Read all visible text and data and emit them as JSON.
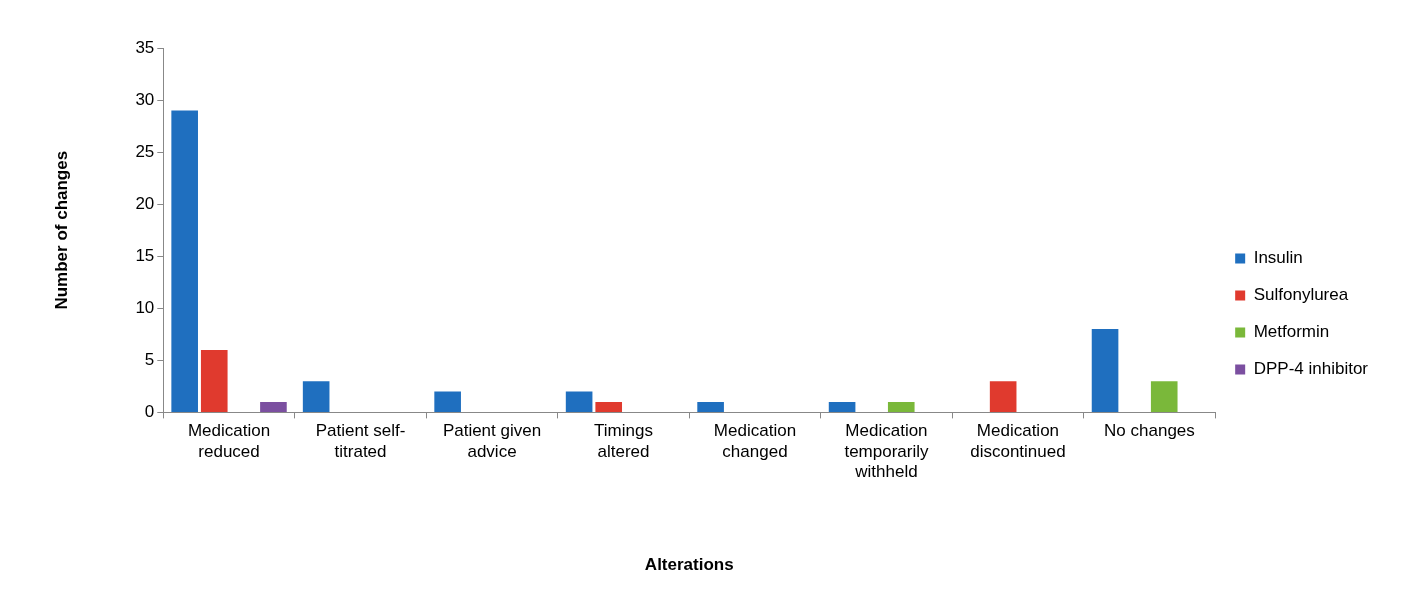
{
  "chart_data": {
    "type": "bar",
    "xlabel": "Alterations",
    "ylabel": "Number of changes",
    "categories": [
      "Medication reduced",
      "Patient self-titrated",
      "Patient given advice",
      "Timings altered",
      "Medication changed",
      "Medication temporarily withheld",
      "Medication discontinued",
      "No changes"
    ],
    "series": [
      {
        "name": "Insulin",
        "color": "#1f6fbf",
        "values": [
          29,
          3,
          2,
          2,
          1,
          1,
          0,
          8
        ]
      },
      {
        "name": "Sulfonylurea",
        "color": "#e03a2e",
        "values": [
          6,
          0,
          0,
          1,
          0,
          0,
          3,
          0
        ]
      },
      {
        "name": "Metformin",
        "color": "#7ab83a",
        "values": [
          0,
          0,
          0,
          0,
          0,
          1,
          0,
          3
        ]
      },
      {
        "name": "DPP-4 inhibitor",
        "color": "#7b4fa0",
        "values": [
          1,
          0,
          0,
          0,
          0,
          0,
          0,
          0
        ]
      }
    ],
    "ylim": [
      0,
      35
    ],
    "yticks": [
      0,
      5,
      10,
      15,
      20,
      25,
      30,
      35
    ],
    "grid": false,
    "legend": "right"
  }
}
